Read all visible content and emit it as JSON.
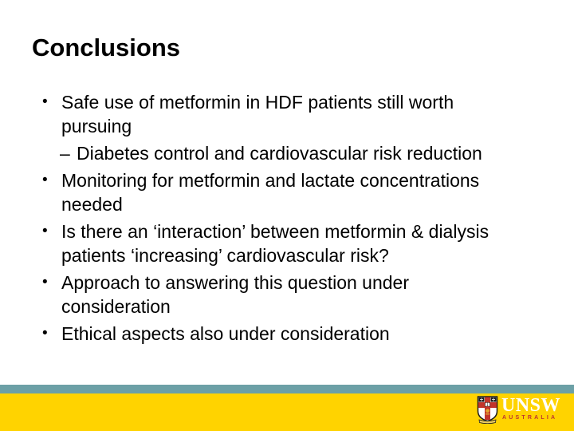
{
  "slide": {
    "title": "Conclusions",
    "bullets": [
      {
        "level": 1,
        "lines": [
          "Safe use of metformin in HDF patients still worth",
          "pursuing"
        ]
      },
      {
        "level": 2,
        "lines": [
          "Diabetes control and cardiovascular risk reduction"
        ]
      },
      {
        "level": 1,
        "lines": [
          "Monitoring for metformin and lactate concentrations",
          "needed"
        ]
      },
      {
        "level": 1,
        "lines": [
          "Is there an ‘interaction’ between metformin & dialysis",
          "patients ‘increasing’ cardiovascular risk?"
        ]
      },
      {
        "level": 1,
        "lines": [
          "Approach to answering this question under",
          "consideration"
        ]
      },
      {
        "level": 1,
        "lines": [
          "Ethical aspects also under consideration"
        ]
      }
    ],
    "glyphs": {
      "level1": "•",
      "level2": "–"
    },
    "footer": {
      "logo_wordmark": "UNSW",
      "logo_tagline": "AUSTRALIA"
    }
  },
  "colors": {
    "background": "#FFFFFF",
    "text": "#000000",
    "teal_stripe": "#6CA0A6",
    "gold_band": "#FFD300",
    "logo_red": "#BE3430",
    "logo_white": "#FFFFFF"
  }
}
